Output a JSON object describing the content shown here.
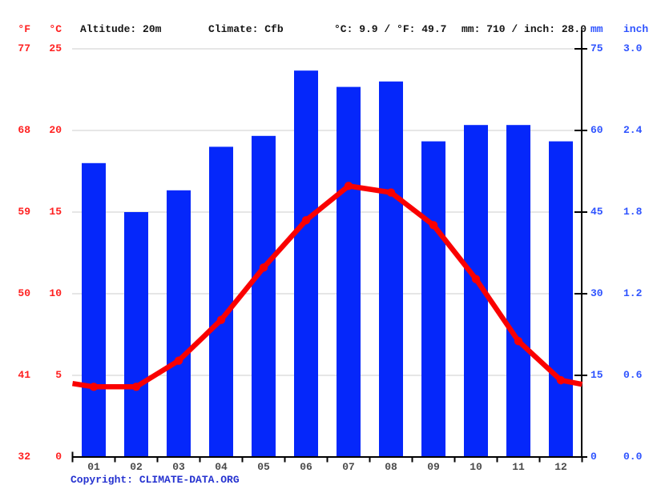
{
  "header": {
    "f": "°F",
    "c": "°C",
    "altitude": "Altitude: 20m",
    "climate": "Climate: Cfb",
    "temperature": "°C: 9.9 / °F: 49.7",
    "precipitation": "mm: 710 / inch: 28.0",
    "mm": "mm",
    "inch": "inch"
  },
  "footer": {
    "copyright": "Copyright: CLIMATE-DATA.ORG"
  },
  "colors": {
    "bar": "#0527fa",
    "line": "#fa0000",
    "left_label": "#ff2020",
    "right_label": "#2e53ff",
    "month_label": "#4a4a4a",
    "grid": "#cccccc",
    "axis": "#000000",
    "copyright": "#2633d0",
    "header_text": "#141414"
  },
  "chart_data": {
    "type": "bar",
    "title": "Climate graph: altitude 20m, climate Cfb, mean temp 9.9°C / 49.7°F, annual precipitation 710mm / 28.0 inch",
    "categories": [
      "01",
      "02",
      "03",
      "04",
      "05",
      "06",
      "07",
      "08",
      "09",
      "10",
      "11",
      "12"
    ],
    "series": [
      {
        "name": "Precipitation",
        "type": "bar",
        "unit": "mm",
        "axis": "right",
        "ylim": [
          0,
          75
        ],
        "values": [
          54,
          45,
          49,
          57,
          59,
          71,
          68,
          69,
          58,
          61,
          61,
          58
        ]
      },
      {
        "name": "Average temperature",
        "type": "line",
        "unit": "°C",
        "axis": "left",
        "ylim": [
          0,
          25
        ],
        "values": [
          4.3,
          4.3,
          5.9,
          8.4,
          11.6,
          14.5,
          16.6,
          16.2,
          14.2,
          10.9,
          7.1,
          4.7
        ],
        "edge_values": [
          4.5,
          4.45
        ]
      }
    ],
    "left_axis": {
      "f_ticks": [
        "77",
        "68",
        "59",
        "50",
        "41",
        "32"
      ],
      "c_ticks": [
        "25",
        "20",
        "15",
        "10",
        "5",
        "0"
      ]
    },
    "right_axis": {
      "mm_ticks": [
        "75",
        "60",
        "45",
        "30",
        "15",
        "0"
      ],
      "inch_ticks": [
        "3.0",
        "2.4",
        "1.8",
        "1.2",
        "0.6",
        "0.0"
      ]
    },
    "grid": "horizontal",
    "legend": "none"
  }
}
